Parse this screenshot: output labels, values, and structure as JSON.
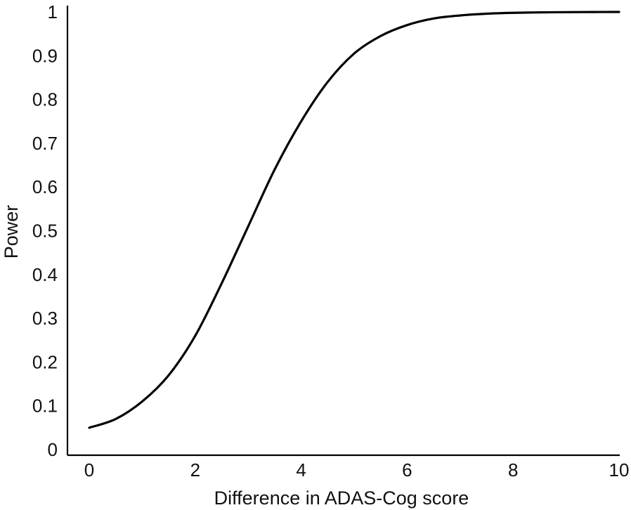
{
  "chart_data": {
    "type": "line",
    "title": "",
    "xlabel": "Difference in ADAS-Cog score",
    "ylabel": "Power",
    "xlim": [
      0,
      10
    ],
    "ylim": [
      0,
      1
    ],
    "x_ticks": [
      "0",
      "2",
      "4",
      "6",
      "8",
      "10"
    ],
    "y_ticks": [
      "0",
      "0.1",
      "0.2",
      "0.3",
      "0.4",
      "0.5",
      "0.6",
      "0.7",
      "0.8",
      "0.9",
      "1"
    ],
    "grid": false,
    "legend": "none",
    "series": [
      {
        "x": [
          0,
          0.5,
          1,
          1.5,
          2,
          2.5,
          3,
          3.5,
          4,
          4.5,
          5,
          5.5,
          6,
          6.5,
          7,
          7.5,
          8,
          8.5,
          9,
          9.5,
          10
        ],
        "y": [
          0.05,
          0.07,
          0.11,
          0.17,
          0.26,
          0.38,
          0.51,
          0.64,
          0.75,
          0.84,
          0.905,
          0.945,
          0.97,
          0.985,
          0.992,
          0.996,
          0.998,
          0.999,
          0.9995,
          0.9998,
          1.0
        ]
      }
    ],
    "colors": {
      "line": "#000000",
      "axis": "#000000"
    }
  }
}
